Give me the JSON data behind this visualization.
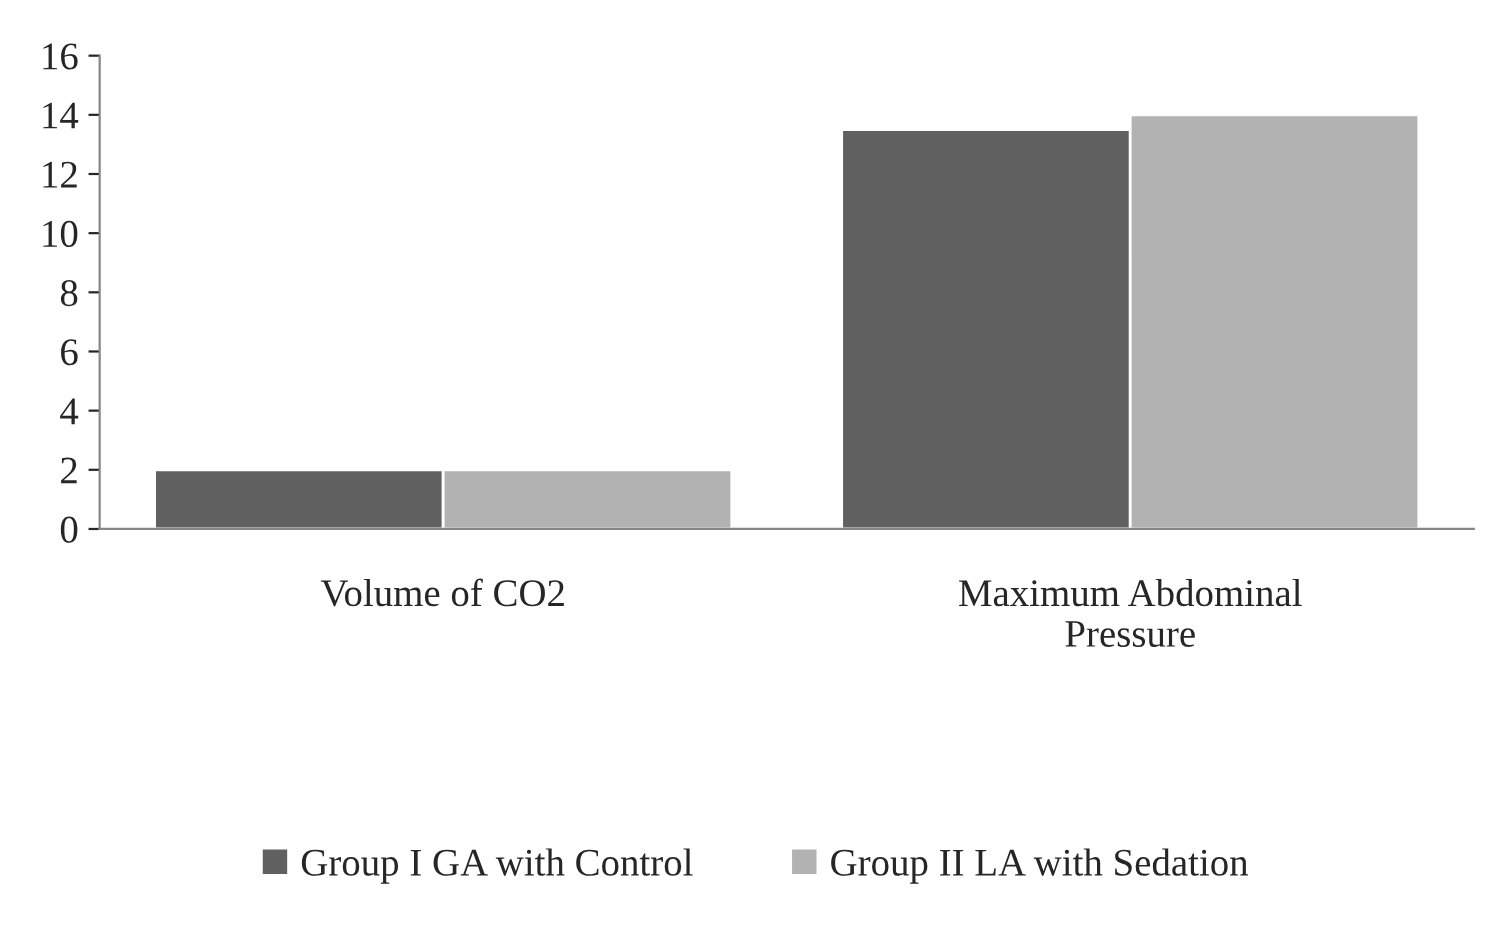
{
  "chart_data": {
    "type": "bar",
    "categories": [
      "Volume of CO2",
      "Maximum Abdominal\nPressure"
    ],
    "series": [
      {
        "name": "Group I GA with Control",
        "color": "#606060",
        "values": [
          2,
          13.5
        ]
      },
      {
        "name": "Group II LA with Sedation",
        "color": "#b2b2b2",
        "values": [
          2,
          14
        ]
      }
    ],
    "ylim": [
      0,
      16
    ],
    "yticks": [
      0,
      2,
      4,
      6,
      8,
      10,
      12,
      14,
      16
    ],
    "grid": false,
    "legend": "bottom"
  }
}
